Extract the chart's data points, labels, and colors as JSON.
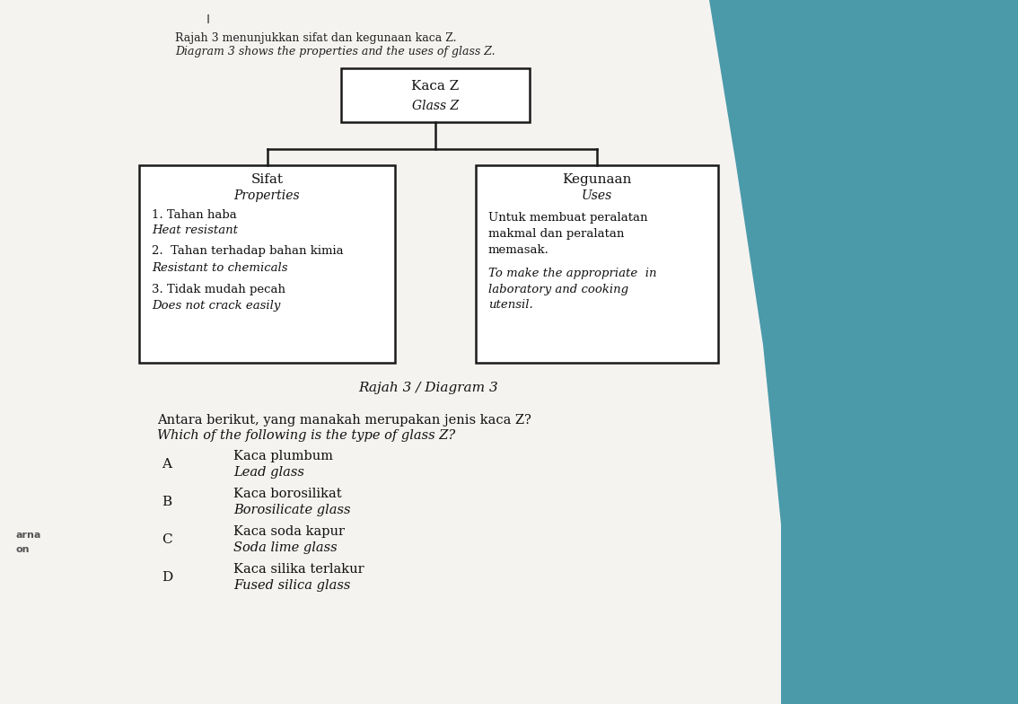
{
  "bg_color_paper": "#e8e5e0",
  "bg_color_teal": "#4a9aaa",
  "paper_color": "#f5f3f0",
  "title_line1": "Rajah 3 menunjukkan sifat dan kegunaan kaca Z.",
  "title_line2": "Diagram 3 shows the properties and the uses of glass Z.",
  "page_num": "I",
  "top_box_line1": "Kaca Z",
  "top_box_line2": "Glass Z",
  "left_box_title1": "Sifat",
  "left_box_title2": "Properties",
  "left_box_items": [
    [
      "1. Tahan haba",
      false
    ],
    [
      "Heat resistant",
      true
    ],
    [
      "2.  Tahan terhadap bahan kimia",
      false
    ],
    [
      "Resistant to chemicals",
      true
    ],
    [
      "3. Tidak mudah pecah",
      false
    ],
    [
      "Does not crack easily",
      true
    ]
  ],
  "right_box_title1": "Kegunaan",
  "right_box_title2": "Uses",
  "right_box_items": [
    [
      "Untuk membuat peralatan",
      false
    ],
    [
      "makmal dan peralatan",
      false
    ],
    [
      "memasak.",
      false
    ],
    [
      "To make the appropriate  in",
      true
    ],
    [
      "laboratory and cooking",
      true
    ],
    [
      "utensil.",
      true
    ]
  ],
  "caption": "Rajah 3 / Diagram 3",
  "question_line1": "Antara berikut, yang manakah merupakan jenis kaca Z?",
  "question_line2": "Which of the following is the type of glass Z?",
  "options": [
    {
      "letter": "A",
      "line1": "Kaca plumbum",
      "line2": "Lead glass"
    },
    {
      "letter": "B",
      "line1": "Kaca borosilikat",
      "line2": "Borosilicate glass"
    },
    {
      "letter": "C",
      "line1": "Kaca soda kapur",
      "line2": "Soda lime glass"
    },
    {
      "letter": "D",
      "line1": "Kaca silika terlakur",
      "line2": "Fused silica glass"
    }
  ],
  "box_edge_color": "#1a1a1a",
  "box_face_color": "#ffffff",
  "text_color": "#111111",
  "side_text": [
    "arna",
    "on"
  ]
}
